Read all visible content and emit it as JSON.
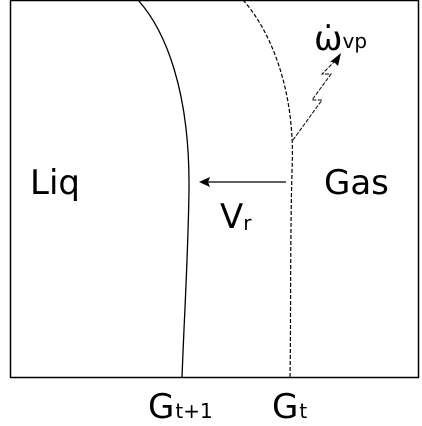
{
  "labels": {
    "liquid": "Liq",
    "gas": "Gas",
    "velocity": {
      "symbol": "V",
      "subscript": "r"
    },
    "source": {
      "symbol": "ω̇",
      "subscript": "vp"
    },
    "interface_new": {
      "symbol": "G",
      "subscript": "t+1"
    },
    "interface_old": {
      "symbol": "G",
      "subscript": "t"
    }
  }
}
